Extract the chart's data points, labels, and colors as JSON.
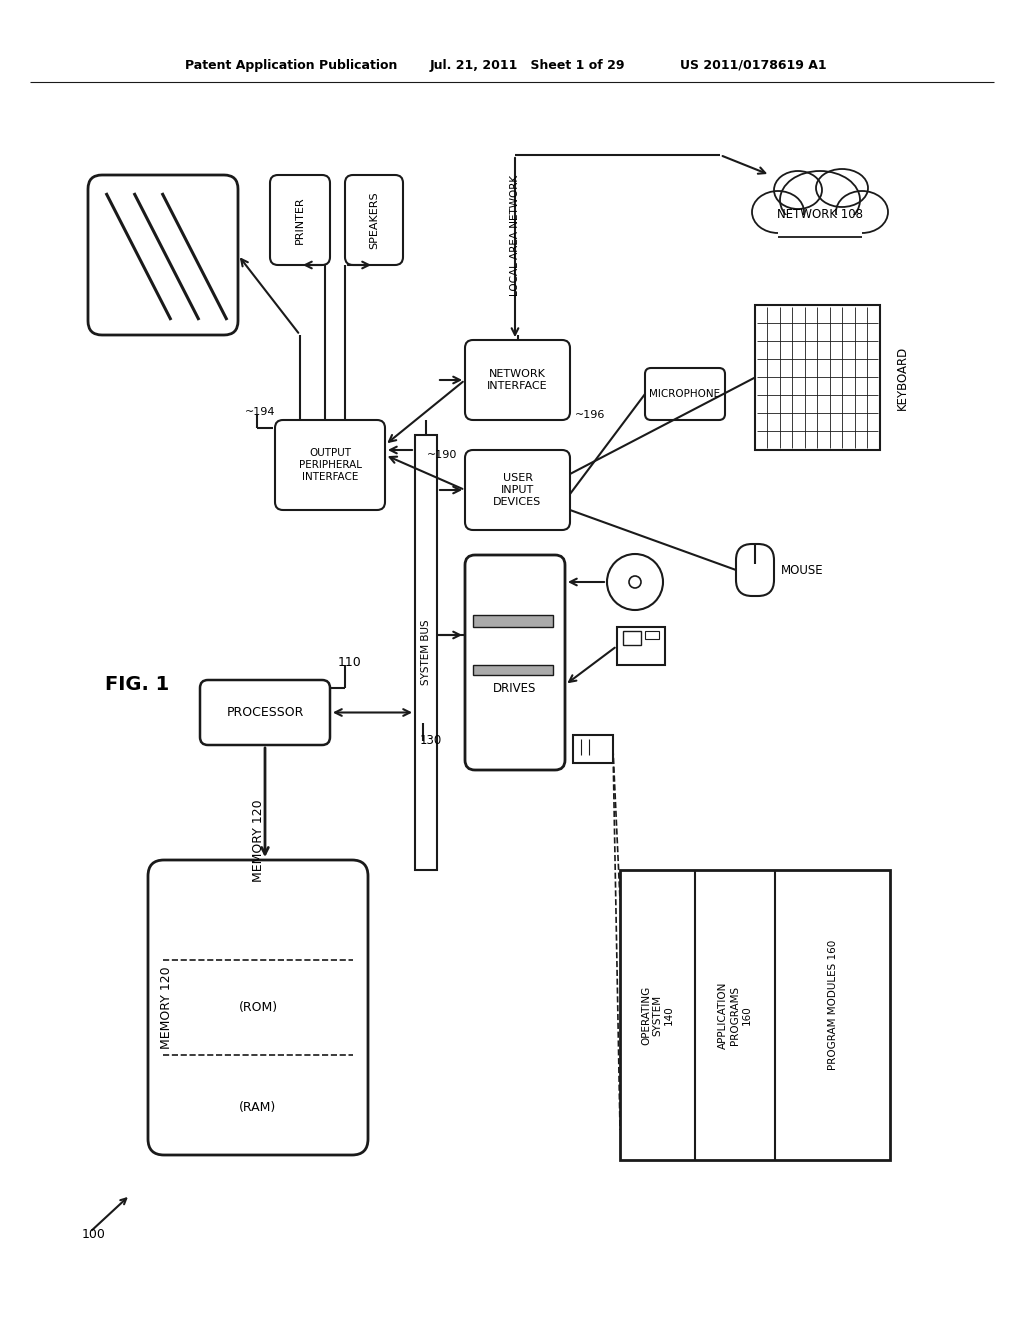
{
  "header_left": "Patent Application Publication",
  "header_mid": "Jul. 21, 2011   Sheet 1 of 29",
  "header_right": "US 2011/0178619 A1",
  "fig_label": "FIG. 1",
  "ref_100": "100",
  "ref_110": "110",
  "ref_120": "MEMORY 120",
  "ref_130": "130",
  "ref_140": "OPERATING\nSYSTEM\n140",
  "ref_160a": "APPLICATION\nPROGRAMS\n160",
  "ref_160b": "PROGRAM MODULES 160",
  "ref_190": "190",
  "ref_194": "194",
  "ref_196": "196",
  "ref_108": "NETWORK 108",
  "rom_label": "(ROM)",
  "ram_label": "(RAM)",
  "processor_label": "PROCESSOR",
  "drives_label": "DRIVES",
  "system_bus_label": "SYSTEM BUS",
  "network_interface_label": "NETWORK\nINTERFACE",
  "user_input_label": "USER\nINPUT\nDEVICES",
  "output_periph_label": "OUTPUT\nPERIPHERAL\nINTERFACE",
  "printer_label": "PRINTER",
  "speakers_label": "SPEAKERS",
  "local_area_network_label": "LOCAL AREA NETWORK",
  "mouse_label": "MOUSE",
  "microphone_label": "MICROPHONE",
  "keyboard_label": "KEYBOARD",
  "bg_color": "#ffffff",
  "line_color": "#1a1a1a",
  "text_color": "#000000"
}
